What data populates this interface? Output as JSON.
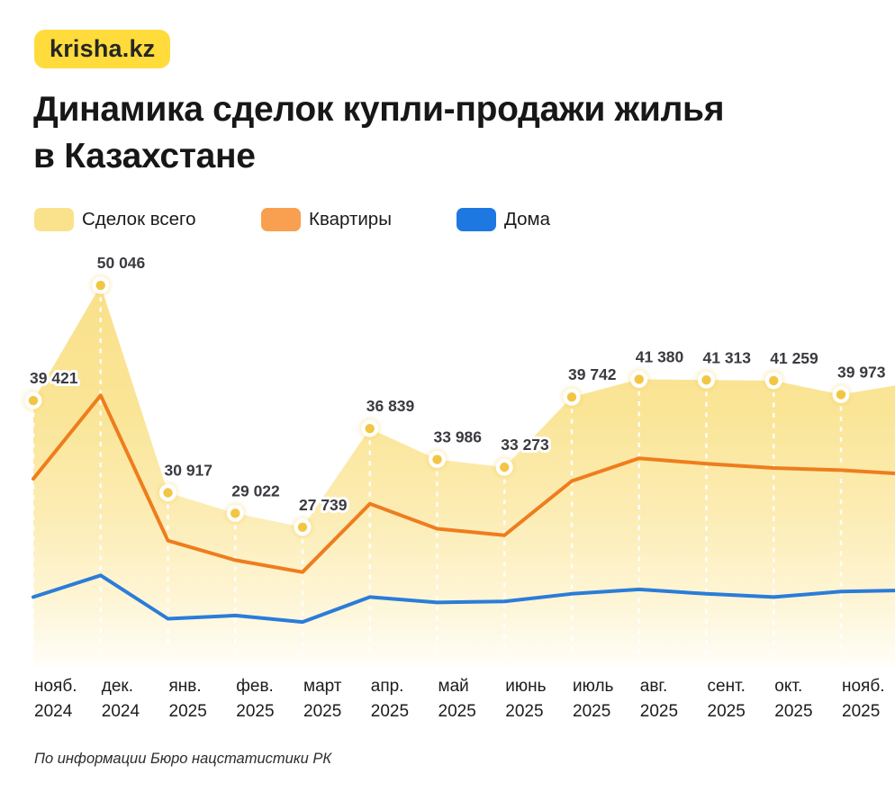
{
  "logo": {
    "label": "krisha.kz",
    "bg_color": "#FFDB3C",
    "text_color": "#262626"
  },
  "title": {
    "line1": "Динамика сделок купли-продажи жилья",
    "line2": "в Казахстане"
  },
  "legend": {
    "items": [
      {
        "label": "Сделок всего",
        "color": "#FAE28C"
      },
      {
        "label": "Квартиры",
        "color": "#F9A050"
      },
      {
        "label": "Дома",
        "color": "#1D78E2"
      }
    ]
  },
  "source_note": "По информации Бюро нацстатистики РК",
  "chart_data": {
    "type": "area",
    "title": "Динамика сделок купли-продажи жилья в Казахстане",
    "legend_position": "top",
    "grid": "vertical-white-dashed-guides-under-points",
    "y_axis_visible": false,
    "x_categories": [
      {
        "month": "нояб.",
        "year": "2024"
      },
      {
        "month": "дек.",
        "year": "2024"
      },
      {
        "month": "янв.",
        "year": "2025"
      },
      {
        "month": "фев.",
        "year": "2025"
      },
      {
        "month": "март",
        "year": "2025"
      },
      {
        "month": "апр.",
        "year": "2025"
      },
      {
        "month": "май",
        "year": "2025"
      },
      {
        "month": "июнь",
        "year": "2025"
      },
      {
        "month": "июль",
        "year": "2025"
      },
      {
        "month": "авг.",
        "year": "2025"
      },
      {
        "month": "сент.",
        "year": "2025"
      },
      {
        "month": "окт.",
        "year": "2025"
      },
      {
        "month": "нояб.",
        "year": "2025"
      }
    ],
    "series": [
      {
        "name": "Сделок всего",
        "kind": "area",
        "show_point_labels": true,
        "point_core_color": "#F2C644",
        "point_ring_color": "#FFFFFF",
        "fill_gradient": [
          "#F9E08A",
          "#FAE597",
          "#FCEDB6",
          "#FEF6D9",
          "#FFFEF9"
        ],
        "values": [
          39421,
          50046,
          30917,
          29022,
          27739,
          36839,
          33986,
          33273,
          39742,
          41380,
          41313,
          41259,
          39973
        ],
        "edge_extension_value": 40800
      },
      {
        "name": "Квартиры",
        "kind": "line",
        "color": "#EE7D1E",
        "estimated": true,
        "values": [
          32200,
          39900,
          26500,
          24700,
          23600,
          29900,
          27600,
          27000,
          32000,
          34100,
          33600,
          33200,
          33000
        ],
        "edge_extension_value": 32700
      },
      {
        "name": "Дома",
        "kind": "line",
        "color": "#2B7CD9",
        "estimated": true,
        "values": [
          21300,
          23300,
          19300,
          19600,
          19000,
          21300,
          20800,
          20900,
          21600,
          22000,
          21600,
          21300,
          21800
        ],
        "edge_extension_value": 21900
      }
    ]
  }
}
